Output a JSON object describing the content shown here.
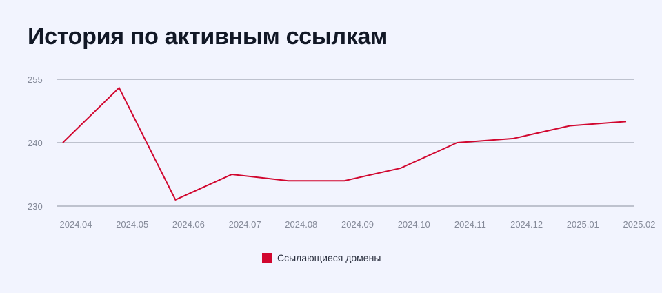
{
  "title": "История по активным ссылкам",
  "colors": {
    "line": "#d1072f",
    "grid": "#a0a4b2",
    "tick": "#858a99",
    "background": "#f2f4fe"
  },
  "chart_data": {
    "type": "line",
    "categories": [
      "2024.04",
      "2024.05",
      "2024.06",
      "2024.07",
      "2024.08",
      "2024.09",
      "2024.10",
      "2024.11",
      "2024.12",
      "2025.01",
      "2025.02"
    ],
    "yticks": [
      230,
      240,
      255
    ],
    "grid": true,
    "legend": "bottom-center",
    "series": [
      {
        "name": "Ссылающиеся домены",
        "values": [
          240,
          253,
          231,
          235,
          234,
          234,
          236,
          240,
          241,
          244,
          245
        ]
      }
    ]
  }
}
